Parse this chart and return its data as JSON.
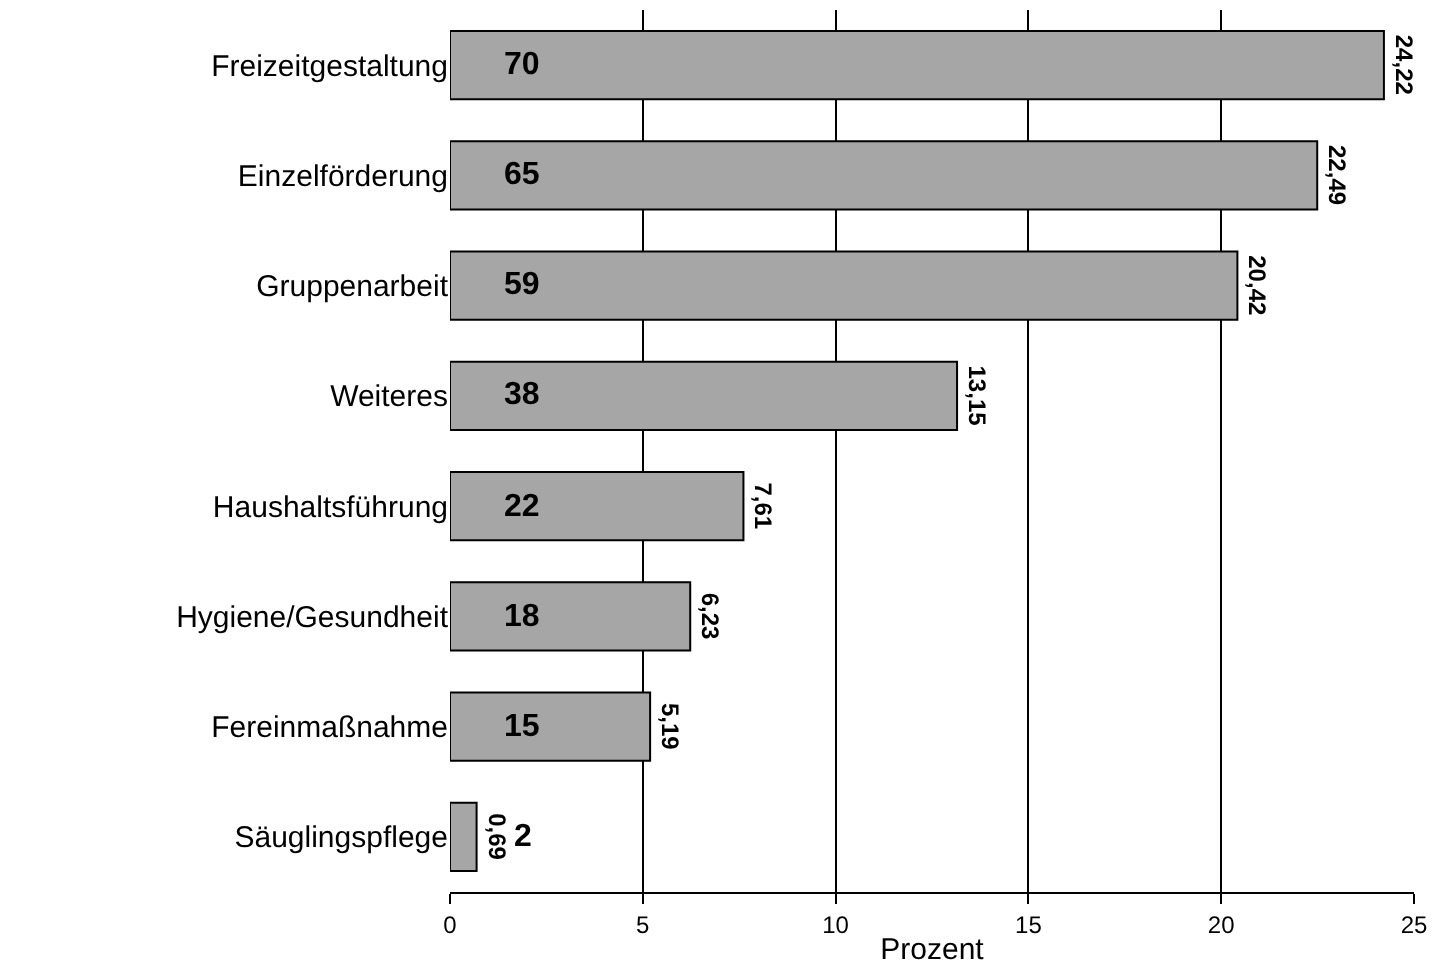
{
  "chart_data": {
    "type": "bar",
    "orientation": "horizontal",
    "xlabel": "Prozent",
    "categories": [
      "Freizeitgestaltung",
      "Einzelförderung",
      "Gruppenarbeit",
      "Weiteres",
      "Haushaltsführung",
      "Hygiene/Gesundheit",
      "Fereinmaßnahme",
      "Säuglingspflege"
    ],
    "values": [
      24.22,
      22.49,
      20.42,
      13.15,
      7.61,
      6.23,
      5.19,
      0.69
    ],
    "value_labels": [
      "24,22",
      "22,49",
      "20,42",
      "13,15",
      "7,61",
      "6,23",
      "5,19",
      "0,69"
    ],
    "color": "#a6a6a6",
    "xlim": [
      0,
      25
    ],
    "xticks": [
      0,
      5,
      10,
      15,
      20,
      25
    ],
    "grid": "x",
    "annotations": [
      "70",
      "65",
      "59",
      "38",
      "22",
      "18",
      "15",
      "2"
    ]
  }
}
